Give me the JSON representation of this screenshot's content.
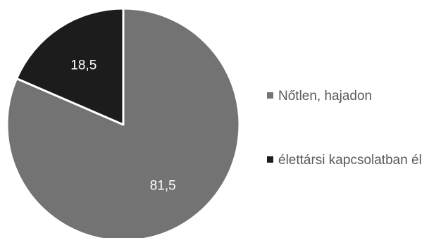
{
  "chart_data": {
    "type": "pie",
    "categories": [
      "Nőtlen, hajadon",
      "élettársi kapcsolatban él"
    ],
    "values": [
      81.5,
      18.5
    ],
    "value_labels": [
      "81,5",
      "18,5"
    ],
    "colors": [
      "#737373",
      "#1c1c1c"
    ],
    "label_colors": [
      "#ffffff",
      "#ffffff"
    ],
    "slice_border_color": "#ffffff",
    "start_angle_deg": 0,
    "direction": "clockwise",
    "legend_position": "right",
    "legend_text_color": "#595959"
  }
}
